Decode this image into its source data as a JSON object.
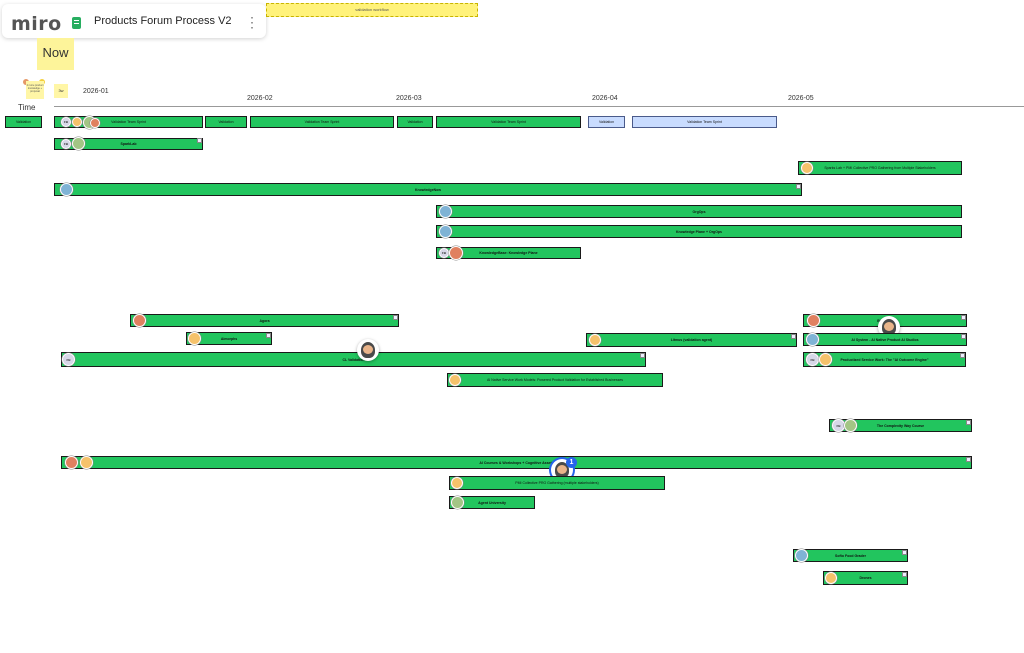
{
  "header": {
    "logo": "miro",
    "board_title": "Products Forum Process V2",
    "more_icon": "more-vertical-icon"
  },
  "banner": {
    "label": "validation workflow"
  },
  "now_sticky": {
    "label": "Now"
  },
  "note_sticky": {
    "label": "2 more product knowledge + proposal"
  },
  "week_sticky": {
    "label": "3w"
  },
  "timeline": {
    "label": "Time",
    "months": [
      "2026-01",
      "2026-02",
      "2026-03",
      "2026-04",
      "2026-05"
    ]
  },
  "rows": {
    "r1": [
      {
        "label": "Validation"
      },
      {
        "label": "Validation Team Sprint"
      },
      {
        "label": "Validation"
      },
      {
        "label": "Validation Team Sprint"
      },
      {
        "label": "Validation"
      },
      {
        "label": "Validation Team Sprint"
      },
      {
        "label": "Validation"
      },
      {
        "label": "Validation Team Sprint"
      }
    ],
    "sparkslab": "SparkLab",
    "sparklab_right": "Sparks Lab + PMI Collective PRO Gathering from Multiple Stakeholders",
    "knowledgenow": "KnowledgeNow",
    "orgops": "OrgOps",
    "knowledge_plane": "Knowledge Plane + OrgOps",
    "knowledgebase": "KnowledgeBase: Knowledge Plane",
    "agora": "Agora",
    "aimorphs": "Aimorphs",
    "ai_validation": "CL Validation",
    "litmus": "Litmus (validation agent)",
    "ai_native": "AI Native Service Work Models: Powered Product Validation for Established Businesses",
    "aisystem_right_top": "Business",
    "aisystem": "AI System - AI Native Product AI Studios",
    "productized": "Productized Service Work: The \"AI Outcome Engine\"",
    "complexity": "The Complexity Way Course",
    "ai_courses": "AI Courses & Workshops + Cognitive Assets",
    "pmi_collective": "PMI Collective PRO Gathering (multiple stakeholders)",
    "agent_university": "Agent University",
    "softo_food": "Softo Food Grader",
    "drones": "Drones"
  },
  "badge": {
    "count": "1"
  },
  "avatar_initials": {
    "fb": "FB"
  },
  "colors": {
    "bar_green": "#22c55e",
    "bar_blue": "#c9dcff",
    "sticky_yellow": "#fdf49a",
    "accent_blue": "#2563eb"
  }
}
